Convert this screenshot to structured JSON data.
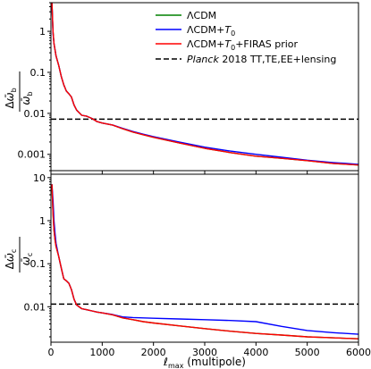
{
  "chart_data": [
    {
      "type": "line",
      "panel": "top",
      "ylabel_top": "Δω̄_b",
      "ylabel_bottom": "ω̄_b",
      "yscale": "log",
      "xlim": [
        0,
        6000
      ],
      "ylim": [
        0.0004,
        5
      ],
      "yticks": [
        0.001,
        0.01,
        0.1,
        1
      ],
      "ytick_labels": [
        "0.001",
        "0.01",
        "0.1",
        "1"
      ],
      "legend_position": "top-right",
      "legend": [
        {
          "label": "ΛCDM",
          "color": "#008000",
          "style": "solid"
        },
        {
          "label": "ΛCDM+T₀",
          "color": "#0000ff",
          "style": "solid"
        },
        {
          "label": "ΛCDM+T₀+FIRAS prior",
          "color": "#ff0000",
          "style": "solid"
        },
        {
          "label": "Planck 2018 TT,TE,EE+lensing",
          "color": "#000000",
          "style": "dashed"
        }
      ],
      "hline": {
        "y": 0.0072,
        "color": "#000000",
        "style": "dashed"
      },
      "series": [
        {
          "name": "ΛCDM",
          "color": "#008000",
          "x": [
            20,
            40,
            60,
            80,
            100,
            150,
            200,
            250,
            300,
            350,
            400,
            450,
            500,
            600,
            700,
            800,
            900,
            1000,
            1200,
            1400,
            1600,
            1800,
            2000,
            2500,
            3000,
            3500,
            4000,
            4500,
            5000,
            5500,
            6000
          ],
          "values": [
            5,
            1.0,
            0.5,
            0.35,
            0.25,
            0.15,
            0.08,
            0.05,
            0.035,
            0.03,
            0.025,
            0.016,
            0.012,
            0.009,
            0.0085,
            0.0075,
            0.0063,
            0.0058,
            0.0052,
            0.0042,
            0.0035,
            0.003,
            0.0026,
            0.0019,
            0.0014,
            0.0011,
            0.0009,
            0.0008,
            0.0007,
            0.0006,
            0.00055
          ]
        },
        {
          "name": "ΛCDM+T₀",
          "color": "#0000ff",
          "x": [
            20,
            40,
            60,
            80,
            100,
            150,
            200,
            250,
            300,
            350,
            400,
            450,
            500,
            600,
            700,
            800,
            900,
            1000,
            1200,
            1400,
            1600,
            1800,
            2000,
            2500,
            3000,
            3500,
            4000,
            4500,
            5000,
            5500,
            6000
          ],
          "values": [
            5,
            0.9,
            0.5,
            0.35,
            0.25,
            0.15,
            0.08,
            0.05,
            0.035,
            0.03,
            0.025,
            0.016,
            0.012,
            0.009,
            0.0085,
            0.0075,
            0.0063,
            0.0058,
            0.0052,
            0.0043,
            0.0036,
            0.0031,
            0.0027,
            0.002,
            0.0015,
            0.0012,
            0.001,
            0.00085,
            0.00072,
            0.00063,
            0.00057
          ]
        },
        {
          "name": "ΛCDM+T₀+FIRAS prior",
          "color": "#ff0000",
          "x": [
            20,
            40,
            60,
            80,
            100,
            150,
            200,
            250,
            300,
            350,
            400,
            450,
            500,
            600,
            700,
            800,
            900,
            1000,
            1200,
            1400,
            1600,
            1800,
            2000,
            2500,
            3000,
            3500,
            4000,
            4500,
            5000,
            5500,
            6000
          ],
          "values": [
            5,
            1.0,
            0.5,
            0.35,
            0.25,
            0.15,
            0.08,
            0.05,
            0.035,
            0.03,
            0.025,
            0.016,
            0.012,
            0.009,
            0.0085,
            0.0075,
            0.0063,
            0.0058,
            0.0052,
            0.0042,
            0.0035,
            0.003,
            0.0026,
            0.0019,
            0.0014,
            0.0011,
            0.0009,
            0.0008,
            0.0007,
            0.0006,
            0.00055
          ]
        }
      ]
    },
    {
      "type": "line",
      "panel": "bottom",
      "ylabel_top": "Δω̄_c",
      "ylabel_bottom": "ω̄_c",
      "xlabel": "ℓ_max (multipole)",
      "yscale": "log",
      "xlim": [
        0,
        6000
      ],
      "ylim": [
        0.0015,
        12
      ],
      "yticks": [
        0.01,
        0.1,
        1,
        10
      ],
      "ytick_labels": [
        "0.01",
        "0.1",
        "1",
        "10"
      ],
      "xticks": [
        0,
        1000,
        2000,
        3000,
        4000,
        5000,
        6000
      ],
      "xtick_labels": [
        "0",
        "1000",
        "2000",
        "3000",
        "4000",
        "5000",
        "6000"
      ],
      "hline": {
        "y": 0.0115,
        "color": "#000000",
        "style": "dashed"
      },
      "series": [
        {
          "name": "ΛCDM",
          "color": "#008000",
          "x": [
            20,
            40,
            60,
            80,
            100,
            150,
            200,
            250,
            300,
            350,
            400,
            450,
            500,
            600,
            700,
            800,
            900,
            1000,
            1200,
            1400,
            1600,
            1800,
            2000,
            2500,
            3000,
            3500,
            4000,
            4500,
            5000,
            5500,
            6000
          ],
          "values": [
            7,
            1.5,
            0.6,
            0.35,
            0.25,
            0.15,
            0.08,
            0.045,
            0.04,
            0.035,
            0.025,
            0.015,
            0.011,
            0.009,
            0.0085,
            0.008,
            0.0075,
            0.0072,
            0.0065,
            0.0055,
            0.005,
            0.0045,
            0.0042,
            0.0036,
            0.0031,
            0.0027,
            0.0024,
            0.0022,
            0.002,
            0.0019,
            0.0018
          ]
        },
        {
          "name": "ΛCDM+T₀",
          "color": "#0000ff",
          "x": [
            20,
            40,
            60,
            80,
            100,
            150,
            200,
            250,
            300,
            350,
            400,
            450,
            500,
            600,
            700,
            800,
            900,
            1000,
            1200,
            1400,
            1600,
            1800,
            2000,
            2500,
            3000,
            3500,
            4000,
            4500,
            5000,
            5500,
            6000
          ],
          "values": [
            7,
            3,
            1.0,
            0.5,
            0.3,
            0.15,
            0.08,
            0.045,
            0.04,
            0.035,
            0.025,
            0.015,
            0.011,
            0.009,
            0.0085,
            0.008,
            0.0075,
            0.0072,
            0.0066,
            0.0058,
            0.0056,
            0.0055,
            0.0054,
            0.0052,
            0.005,
            0.0048,
            0.0045,
            0.0035,
            0.0028,
            0.0025,
            0.0023
          ]
        },
        {
          "name": "ΛCDM+T₀+FIRAS prior",
          "color": "#ff0000",
          "x": [
            20,
            40,
            60,
            80,
            100,
            150,
            200,
            250,
            300,
            350,
            400,
            450,
            500,
            600,
            700,
            800,
            900,
            1000,
            1200,
            1400,
            1600,
            1800,
            2000,
            2500,
            3000,
            3500,
            4000,
            4500,
            5000,
            5500,
            6000
          ],
          "values": [
            7,
            1.5,
            0.6,
            0.35,
            0.25,
            0.15,
            0.08,
            0.045,
            0.04,
            0.035,
            0.025,
            0.015,
            0.011,
            0.009,
            0.0085,
            0.008,
            0.0075,
            0.0072,
            0.0065,
            0.0055,
            0.005,
            0.0045,
            0.0042,
            0.0036,
            0.0031,
            0.0027,
            0.0024,
            0.0022,
            0.002,
            0.0019,
            0.0018
          ]
        }
      ]
    }
  ]
}
